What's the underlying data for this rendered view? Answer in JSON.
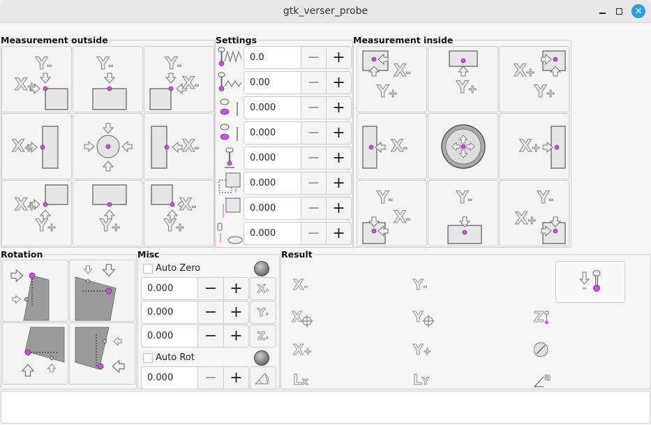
{
  "window": {
    "title": "gtk_verser_probe"
  },
  "colors": {
    "probe_dot": "#e040fb",
    "close_button": "#2a9fe0",
    "workpiece": "#e6e6e6",
    "rotation_plate": "#9a9a9a"
  },
  "measurement_outside": {
    "label": "Measurement outside",
    "cells": [
      {
        "icon": "corner-xplus-yminus-icon",
        "labels": [
          "Y-",
          "X+"
        ]
      },
      {
        "icon": "edge-yminus-icon",
        "labels": [
          "Y-"
        ]
      },
      {
        "icon": "corner-xminus-yminus-icon",
        "labels": [
          "Y-",
          "X-"
        ]
      },
      {
        "icon": "edge-xplus-icon",
        "labels": [
          "X+"
        ]
      },
      {
        "icon": "center-outside-icon",
        "labels": []
      },
      {
        "icon": "edge-xminus-icon",
        "labels": [
          "X-"
        ]
      },
      {
        "icon": "corner-xplus-yplus-icon",
        "labels": [
          "X+",
          "Y+"
        ]
      },
      {
        "icon": "edge-yplus-icon",
        "labels": [
          "Y+"
        ]
      },
      {
        "icon": "corner-xminus-yplus-icon",
        "labels": [
          "X-",
          "Y+"
        ]
      }
    ]
  },
  "settings": {
    "label": "Settings",
    "rows": [
      {
        "icon": "probe-search-speed-icon",
        "value": "0.0"
      },
      {
        "icon": "probe-feed-speed-icon",
        "value": "0.00"
      },
      {
        "icon": "probe-tip-diameter-icon",
        "value": "0.000"
      },
      {
        "icon": "probe-latch-distance-icon",
        "value": "0.000"
      },
      {
        "icon": "probe-max-travel-icon",
        "value": "0.000"
      },
      {
        "icon": "xy-clearance-icon",
        "value": "0.000"
      },
      {
        "icon": "edge-length-icon",
        "value": "0.000"
      },
      {
        "icon": "z-clearance-icon",
        "value": "0.000"
      }
    ],
    "minus": "−",
    "plus": "+"
  },
  "measurement_inside": {
    "label": "Measurement inside",
    "cells": [
      {
        "icon": "inside-corner-xminus-yplus-icon",
        "labels": [
          "X-",
          "Y+"
        ]
      },
      {
        "icon": "inside-edge-yplus-icon",
        "labels": [
          "Y+"
        ]
      },
      {
        "icon": "inside-corner-xplus-yplus-icon",
        "labels": [
          "X+",
          "Y+"
        ]
      },
      {
        "icon": "inside-edge-xminus-icon",
        "labels": [
          "X-"
        ]
      },
      {
        "icon": "center-inside-icon",
        "labels": []
      },
      {
        "icon": "inside-edge-xplus-icon",
        "labels": [
          "X+"
        ]
      },
      {
        "icon": "inside-corner-xminus-yminus-icon",
        "labels": [
          "Y-",
          "X-"
        ]
      },
      {
        "icon": "inside-edge-yminus-icon",
        "labels": [
          "Y-"
        ]
      },
      {
        "icon": "inside-corner-xplus-yminus-icon",
        "labels": [
          "Y-",
          "X+"
        ]
      }
    ]
  },
  "rotation": {
    "label": "Rotation",
    "cells": [
      {
        "icon": "rotation-left-edge-icon"
      },
      {
        "icon": "rotation-top-edge-icon"
      },
      {
        "icon": "rotation-bottom-edge-icon"
      },
      {
        "icon": "rotation-right-edge-icon"
      }
    ]
  },
  "misc": {
    "label": "Misc",
    "auto_zero": {
      "label": "Auto Zero",
      "checked": false
    },
    "auto_rot": {
      "label": "Auto Rot",
      "checked": false
    },
    "offsets": [
      {
        "value": "0.000",
        "button_icon": "zero-x-icon",
        "button_label": "X"
      },
      {
        "value": "0.000",
        "button_icon": "zero-y-icon",
        "button_label": "Y"
      },
      {
        "value": "0.000",
        "button_icon": "zero-z-icon",
        "button_label": "Z"
      }
    ],
    "rotation_value": "0.000",
    "rotation_button_icon": "set-rotation-icon",
    "minus": "−",
    "plus": "+"
  },
  "result": {
    "label": "Result",
    "items": [
      {
        "label": "X-",
        "icon": "x-minus-result-icon"
      },
      {
        "label": "Y-",
        "icon": "y-minus-result-icon"
      },
      {
        "label": "X",
        "icon": "x-center-result-icon"
      },
      {
        "label": "Y",
        "icon": "y-center-result-icon"
      },
      {
        "label": "Z",
        "icon": "z-result-icon"
      },
      {
        "label": "X+",
        "icon": "x-plus-result-icon"
      },
      {
        "label": "Y+",
        "icon": "y-plus-result-icon"
      },
      {
        "label": "",
        "icon": "diameter-result-icon"
      },
      {
        "label": "Lx",
        "icon": "length-x-result-icon"
      },
      {
        "label": "LY",
        "icon": "length-y-result-icon"
      },
      {
        "label": "a",
        "icon": "angle-result-icon"
      }
    ],
    "probe_down_icon": "probe-down-icon"
  }
}
